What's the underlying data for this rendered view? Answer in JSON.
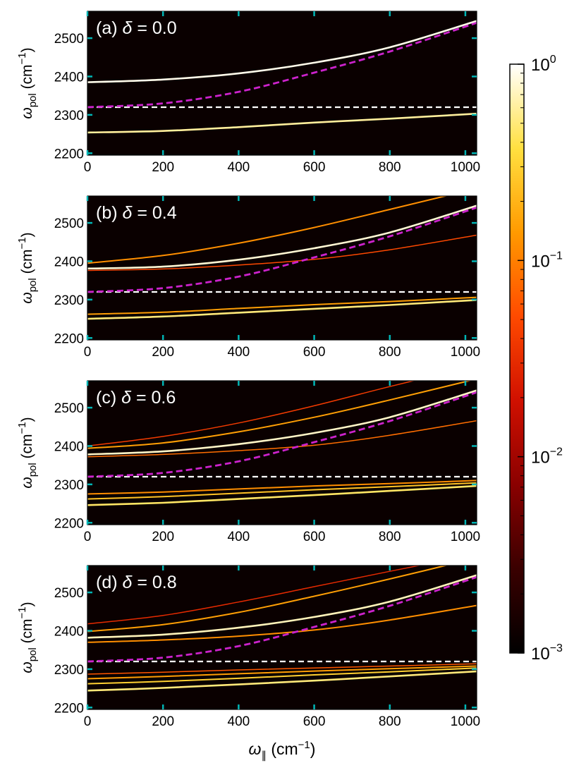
{
  "colors": {
    "background": "#0a0000",
    "cavity_line": "#ffffff",
    "photon_line": "#cc22cc",
    "ticks": "#00b5b5",
    "colormap": [
      "#000000",
      "#3a0000",
      "#8a0000",
      "#d01000",
      "#ff4a00",
      "#ff9a00",
      "#ffe040",
      "#ffffff"
    ]
  },
  "chart_data": {
    "type": "heatmap",
    "xlabel": "ω∥ (cm⁻¹)",
    "ylabel": "ωpol (cm⁻¹)",
    "xlim": [
      0,
      1030
    ],
    "ylim": [
      2195,
      2570
    ],
    "xticks": [
      0,
      200,
      400,
      600,
      800,
      1000
    ],
    "yticks": [
      2200,
      2300,
      2400,
      2500
    ],
    "colorbar": {
      "scale": "log",
      "range": [
        0.001,
        1
      ],
      "ticks": [
        {
          "base": "10",
          "exp": "0",
          "value": 1
        },
        {
          "base": "10",
          "exp": "−1",
          "value": 0.1
        },
        {
          "base": "10",
          "exp": "−2",
          "value": 0.01
        },
        {
          "base": "10",
          "exp": "−3",
          "value": 0.001
        }
      ]
    },
    "reference_lines": {
      "molecular_frequency": 2320,
      "cavity_photon": {
        "x": [
          0,
          200,
          400,
          600,
          800,
          1030
        ],
        "y": [
          2320,
          2330,
          2360,
          2410,
          2465,
          2540
        ]
      }
    },
    "panels": [
      {
        "label": "(a)",
        "param": "δ",
        "value": "0.0",
        "branches": [
          {
            "x": [
              0,
              200,
              400,
              600,
              800,
              1030
            ],
            "y": [
              2385,
              2392,
              2408,
              2436,
              2476,
              2545
            ],
            "intensity": 0.9
          },
          {
            "x": [
              0,
              200,
              400,
              600,
              800,
              1030
            ],
            "y": [
              2254,
              2258,
              2268,
              2280,
              2290,
              2303
            ],
            "intensity": 0.6
          }
        ]
      },
      {
        "label": "(b)",
        "param": "δ",
        "value": "0.4",
        "branches": [
          {
            "x": [
              0,
              200,
              400,
              600,
              800,
              1030
            ],
            "y": [
              2395,
              2415,
              2447,
              2488,
              2535,
              2590
            ],
            "intensity": 0.12
          },
          {
            "x": [
              0,
              200,
              400,
              600,
              800,
              1030
            ],
            "y": [
              2381,
              2386,
              2404,
              2434,
              2475,
              2545
            ],
            "intensity": 0.8
          },
          {
            "x": [
              0,
              200,
              400,
              600,
              800,
              1030
            ],
            "y": [
              2376,
              2380,
              2390,
              2405,
              2430,
              2468
            ],
            "intensity": 0.05
          },
          {
            "x": [
              0,
              200,
              400,
              600,
              800,
              1030
            ],
            "y": [
              2262,
              2267,
              2277,
              2287,
              2295,
              2306
            ],
            "intensity": 0.15
          },
          {
            "x": [
              0,
              200,
              400,
              600,
              800,
              1030
            ],
            "y": [
              2250,
              2256,
              2266,
              2276,
              2286,
              2299
            ],
            "intensity": 0.5
          }
        ]
      },
      {
        "label": "(c)",
        "param": "δ",
        "value": "0.6",
        "branches": [
          {
            "x": [
              0,
              200,
              400,
              600,
              800,
              1030
            ],
            "y": [
              2400,
              2425,
              2460,
              2505,
              2555,
              2610
            ],
            "intensity": 0.04
          },
          {
            "x": [
              0,
              200,
              400,
              600,
              800,
              1030
            ],
            "y": [
              2394,
              2408,
              2437,
              2475,
              2520,
              2575
            ],
            "intensity": 0.15
          },
          {
            "x": [
              0,
              200,
              400,
              600,
              800,
              1030
            ],
            "y": [
              2378,
              2386,
              2405,
              2434,
              2475,
              2545
            ],
            "intensity": 0.75
          },
          {
            "x": [
              0,
              200,
              400,
              600,
              800,
              1030
            ],
            "y": [
              2372,
              2378,
              2388,
              2402,
              2428,
              2466
            ],
            "intensity": 0.08
          },
          {
            "x": [
              0,
              200,
              400,
              600,
              800,
              1030
            ],
            "y": [
              2275,
              2280,
              2288,
              2296,
              2302,
              2310
            ],
            "intensity": 0.12
          },
          {
            "x": [
              0,
              200,
              400,
              600,
              800,
              1030
            ],
            "y": [
              2262,
              2268,
              2277,
              2286,
              2294,
              2304
            ],
            "intensity": 0.25
          },
          {
            "x": [
              0,
              200,
              400,
              600,
              800,
              1030
            ],
            "y": [
              2246,
              2252,
              2262,
              2272,
              2283,
              2296
            ],
            "intensity": 0.45
          }
        ]
      },
      {
        "label": "(d)",
        "param": "δ",
        "value": "0.8",
        "branches": [
          {
            "x": [
              0,
              200,
              400,
              600,
              800,
              1030
            ],
            "y": [
              2418,
              2440,
              2475,
              2515,
              2555,
              2600
            ],
            "intensity": 0.03
          },
          {
            "x": [
              0,
              200,
              400,
              600,
              800,
              1030
            ],
            "y": [
              2398,
              2416,
              2448,
              2490,
              2535,
              2590
            ],
            "intensity": 0.15
          },
          {
            "x": [
              0,
              200,
              400,
              600,
              800,
              1030
            ],
            "y": [
              2382,
              2390,
              2408,
              2436,
              2476,
              2545
            ],
            "intensity": 0.7
          },
          {
            "x": [
              0,
              200,
              400,
              600,
              800,
              1030
            ],
            "y": [
              2370,
              2376,
              2386,
              2402,
              2428,
              2466
            ],
            "intensity": 0.12
          },
          {
            "x": [
              0,
              200,
              400,
              600,
              800,
              1030
            ],
            "y": [
              2287,
              2292,
              2298,
              2303,
              2308,
              2314
            ],
            "intensity": 0.06
          },
          {
            "x": [
              0,
              200,
              400,
              600,
              800,
              1030
            ],
            "y": [
              2275,
              2281,
              2288,
              2295,
              2301,
              2308
            ],
            "intensity": 0.15
          },
          {
            "x": [
              0,
              200,
              400,
              600,
              800,
              1030
            ],
            "y": [
              2262,
              2268,
              2276,
              2285,
              2293,
              2303
            ],
            "intensity": 0.3
          },
          {
            "x": [
              0,
              200,
              400,
              600,
              800,
              1030
            ],
            "y": [
              2244,
              2251,
              2260,
              2270,
              2281,
              2294
            ],
            "intensity": 0.5
          }
        ]
      }
    ]
  }
}
